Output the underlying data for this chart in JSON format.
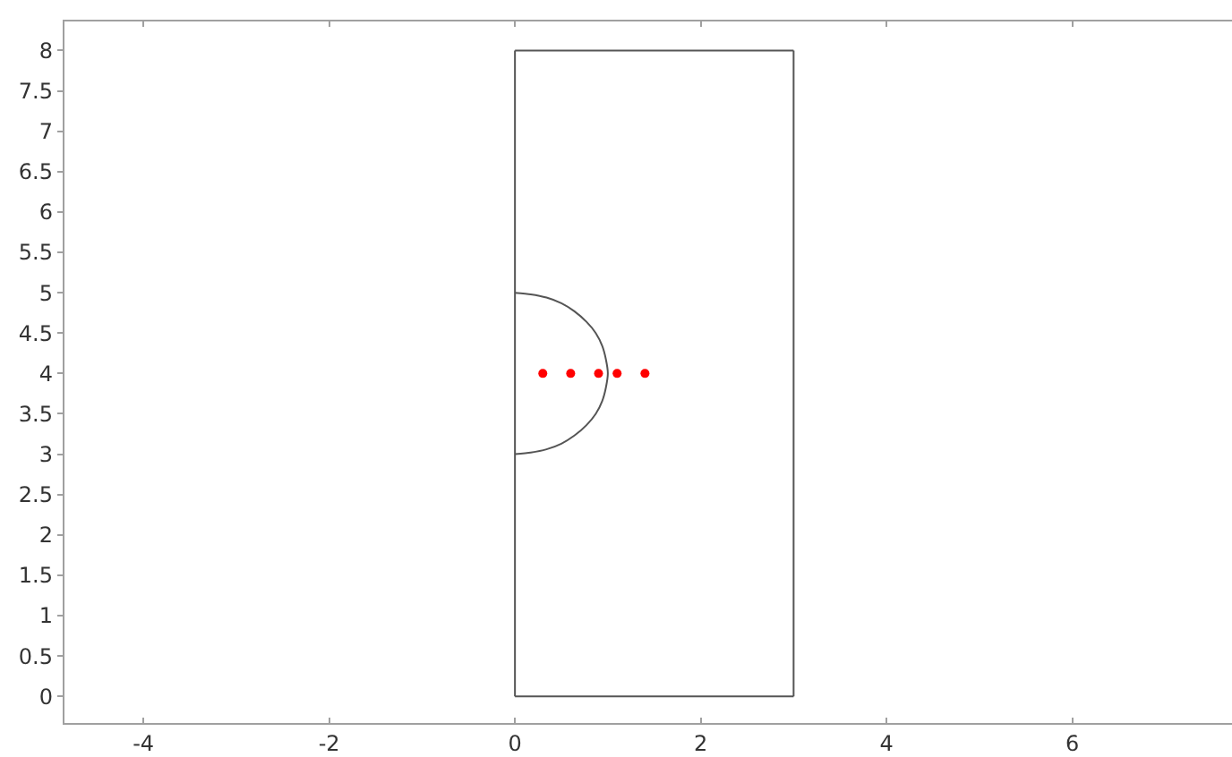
{
  "chart_data": {
    "type": "scatter",
    "series": [
      {
        "type": "line",
        "marker": "none",
        "color": "#555555",
        "x": [
          0,
          3
        ],
        "values": [
          0,
          0
        ]
      },
      {
        "type": "line",
        "marker": "none",
        "color": "#555555",
        "x": [
          3,
          3
        ],
        "values": [
          0,
          8
        ]
      },
      {
        "type": "line",
        "marker": "none",
        "color": "#555555",
        "x": [
          0,
          3
        ],
        "values": [
          8,
          8
        ]
      },
      {
        "type": "line",
        "marker": "none",
        "color": "#555555",
        "x": [
          0,
          0
        ],
        "values": [
          0,
          8
        ]
      },
      {
        "type": "line",
        "marker": "none",
        "color": "#555555",
        "x": [
          0,
          0.17,
          0.34,
          0.5,
          0.64,
          0.77,
          0.87,
          0.94,
          0.98,
          1,
          0.98,
          0.94,
          0.87,
          0.77,
          0.64,
          0.5,
          0.34,
          0.17,
          0
        ],
        "values": [
          5,
          4.98,
          4.94,
          4.87,
          4.77,
          4.64,
          4.5,
          4.34,
          4.17,
          4,
          3.83,
          3.66,
          3.5,
          3.36,
          3.23,
          3.13,
          3.06,
          3.02,
          3
        ]
      },
      {
        "color": "#ff0000",
        "x": [
          0.3,
          0.6,
          0.9,
          1.1,
          1.4
        ],
        "values": [
          4,
          4,
          4,
          4,
          4
        ]
      }
    ],
    "xlim": [
      -4.85,
      7.72
    ],
    "ylim": [
      -0.33,
      8.36
    ],
    "xticks": [
      -4,
      -2,
      0,
      2,
      4,
      6
    ],
    "yticks": [
      0,
      0.5,
      1,
      1.5,
      2,
      2.5,
      3,
      3.5,
      4,
      4.5,
      5,
      5.5,
      6,
      6.5,
      7,
      7.5,
      8
    ],
    "marker": "circle"
  }
}
